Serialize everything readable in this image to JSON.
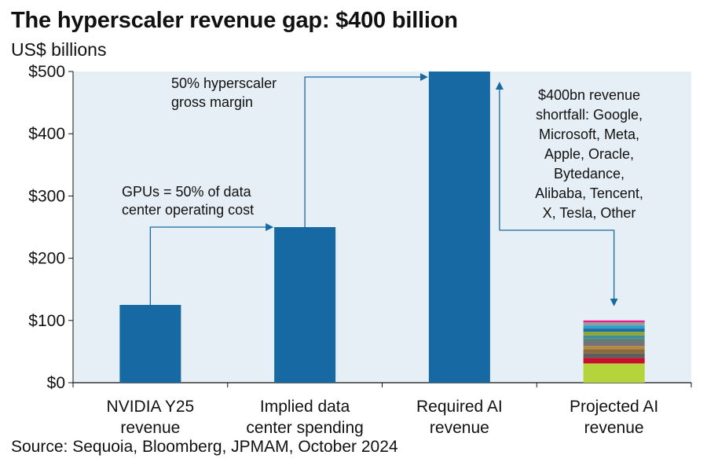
{
  "title": "The hyperscaler revenue gap: $400 billion",
  "subtitle": "US$ billions",
  "source": "Source: Sequoia, Bloomberg, JPMAM, October 2024",
  "colors": {
    "bar": "#1769a4",
    "plot_background": "#e6eff5",
    "arrow": "#1769a4",
    "stack": [
      "#b5d33a",
      "#c8102e",
      "#5e5e5e",
      "#8b6a3a",
      "#b48b3c",
      "#7a6e78",
      "#5d7f7a",
      "#3f8e93",
      "#8ea536",
      "#1d6aa8",
      "#27a3c9",
      "#9a9a9a",
      "#e91e8c"
    ]
  },
  "chart_data": {
    "type": "bar",
    "title": "The hyperscaler revenue gap: $400 billion",
    "ylabel": "US$ billions",
    "ylim": [
      0,
      500
    ],
    "yticks": [
      0,
      100,
      200,
      300,
      400,
      500
    ],
    "ytick_labels": [
      "$0",
      "$100",
      "$200",
      "$300",
      "$400",
      "$500"
    ],
    "grid": false,
    "categories": [
      [
        "NVIDIA Y25",
        "revenue"
      ],
      [
        "Implied data",
        "center spending"
      ],
      [
        "Required AI",
        "revenue"
      ],
      [
        "Projected AI",
        "revenue"
      ]
    ],
    "values": [
      125,
      250,
      500,
      100
    ],
    "stacked_last_bar_segments": [
      31,
      9,
      7,
      7,
      5,
      6,
      6,
      5,
      6,
      5,
      5,
      5,
      3
    ],
    "annotations": [
      {
        "lines": [
          "GPUs = 50% of data",
          "center operating cost"
        ],
        "from": 0,
        "to": 1
      },
      {
        "lines": [
          "50% hyperscaler",
          "gross margin"
        ],
        "from": 1,
        "to": 2
      },
      {
        "lines": [
          "$400bn revenue",
          "shortfall: Google,",
          "Microsoft, Meta,",
          "Apple, Oracle,",
          "Bytedance,",
          "Alibaba, Tencent,",
          "X, Tesla, Other"
        ],
        "from": 2,
        "to": 3
      }
    ]
  }
}
